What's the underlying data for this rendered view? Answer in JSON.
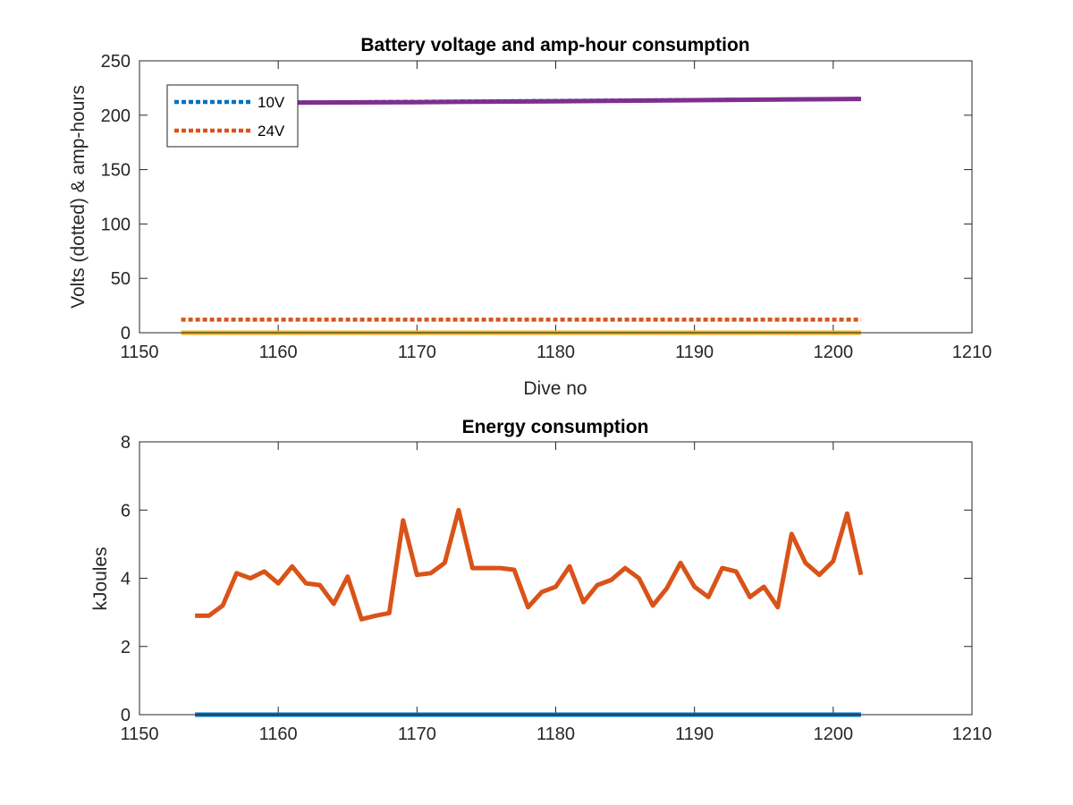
{
  "chart_data": [
    {
      "type": "line",
      "title": "Battery voltage and amp-hour consumption",
      "xlabel": "Dive no",
      "ylabel": "Volts (dotted) & amp-hours",
      "xlim": [
        1150,
        1210
      ],
      "ylim": [
        0,
        250
      ],
      "xticks": [
        1150,
        1160,
        1170,
        1180,
        1190,
        1200,
        1210
      ],
      "yticks": [
        0,
        50,
        100,
        150,
        200,
        250
      ],
      "grid": false,
      "legend_position": "top-left",
      "series": [
        {
          "name": "10V",
          "style": "dotted",
          "color": "#0072BD",
          "x": [
            1153,
            1202
          ],
          "y": [
            211,
            215
          ]
        },
        {
          "name": "24V",
          "style": "dotted",
          "color": "#D95319",
          "x": [
            1153,
            1202
          ],
          "y": [
            12,
            12
          ]
        },
        {
          "style": "solid",
          "color": "#7E2F8E",
          "x": [
            1153,
            1160,
            1170,
            1180,
            1190,
            1202
          ],
          "y": [
            211,
            211.5,
            212,
            212.8,
            213.8,
            215
          ]
        },
        {
          "style": "solid",
          "color": "#EDB120",
          "x": [
            1153,
            1202
          ],
          "y": [
            0,
            0
          ]
        }
      ]
    },
    {
      "type": "line",
      "title": "Energy consumption",
      "xlabel": "",
      "ylabel": "kJoules",
      "xlim": [
        1150,
        1210
      ],
      "ylim": [
        0,
        8
      ],
      "xticks": [
        1150,
        1160,
        1170,
        1180,
        1190,
        1200,
        1210
      ],
      "yticks": [
        0,
        2,
        4,
        6,
        8
      ],
      "grid": false,
      "series": [
        {
          "color": "#0072BD",
          "x": [
            1154,
            1202
          ],
          "y": [
            0,
            0
          ]
        },
        {
          "color": "#D95319",
          "x": [
            1154,
            1155,
            1156,
            1157,
            1158,
            1159,
            1160,
            1161,
            1162,
            1163,
            1164,
            1165,
            1166,
            1167,
            1168,
            1169,
            1170,
            1171,
            1172,
            1173,
            1174,
            1175,
            1176,
            1177,
            1178,
            1179,
            1180,
            1181,
            1182,
            1183,
            1184,
            1185,
            1186,
            1187,
            1188,
            1189,
            1190,
            1191,
            1192,
            1193,
            1194,
            1195,
            1196,
            1197,
            1198,
            1199,
            1200,
            1201,
            1202
          ],
          "y": [
            2.9,
            2.9,
            3.2,
            4.15,
            4.0,
            4.2,
            3.85,
            4.35,
            3.85,
            3.8,
            3.25,
            4.05,
            2.8,
            2.9,
            2.98,
            5.7,
            4.1,
            4.15,
            4.45,
            6.0,
            4.3,
            4.3,
            4.3,
            4.25,
            3.15,
            3.6,
            3.75,
            4.35,
            3.3,
            3.8,
            3.95,
            4.3,
            4.0,
            3.2,
            3.7,
            4.45,
            3.75,
            3.45,
            4.3,
            4.2,
            3.45,
            3.75,
            3.15,
            5.3,
            4.45,
            4.1,
            4.5,
            5.9,
            4.1
          ]
        }
      ]
    }
  ]
}
